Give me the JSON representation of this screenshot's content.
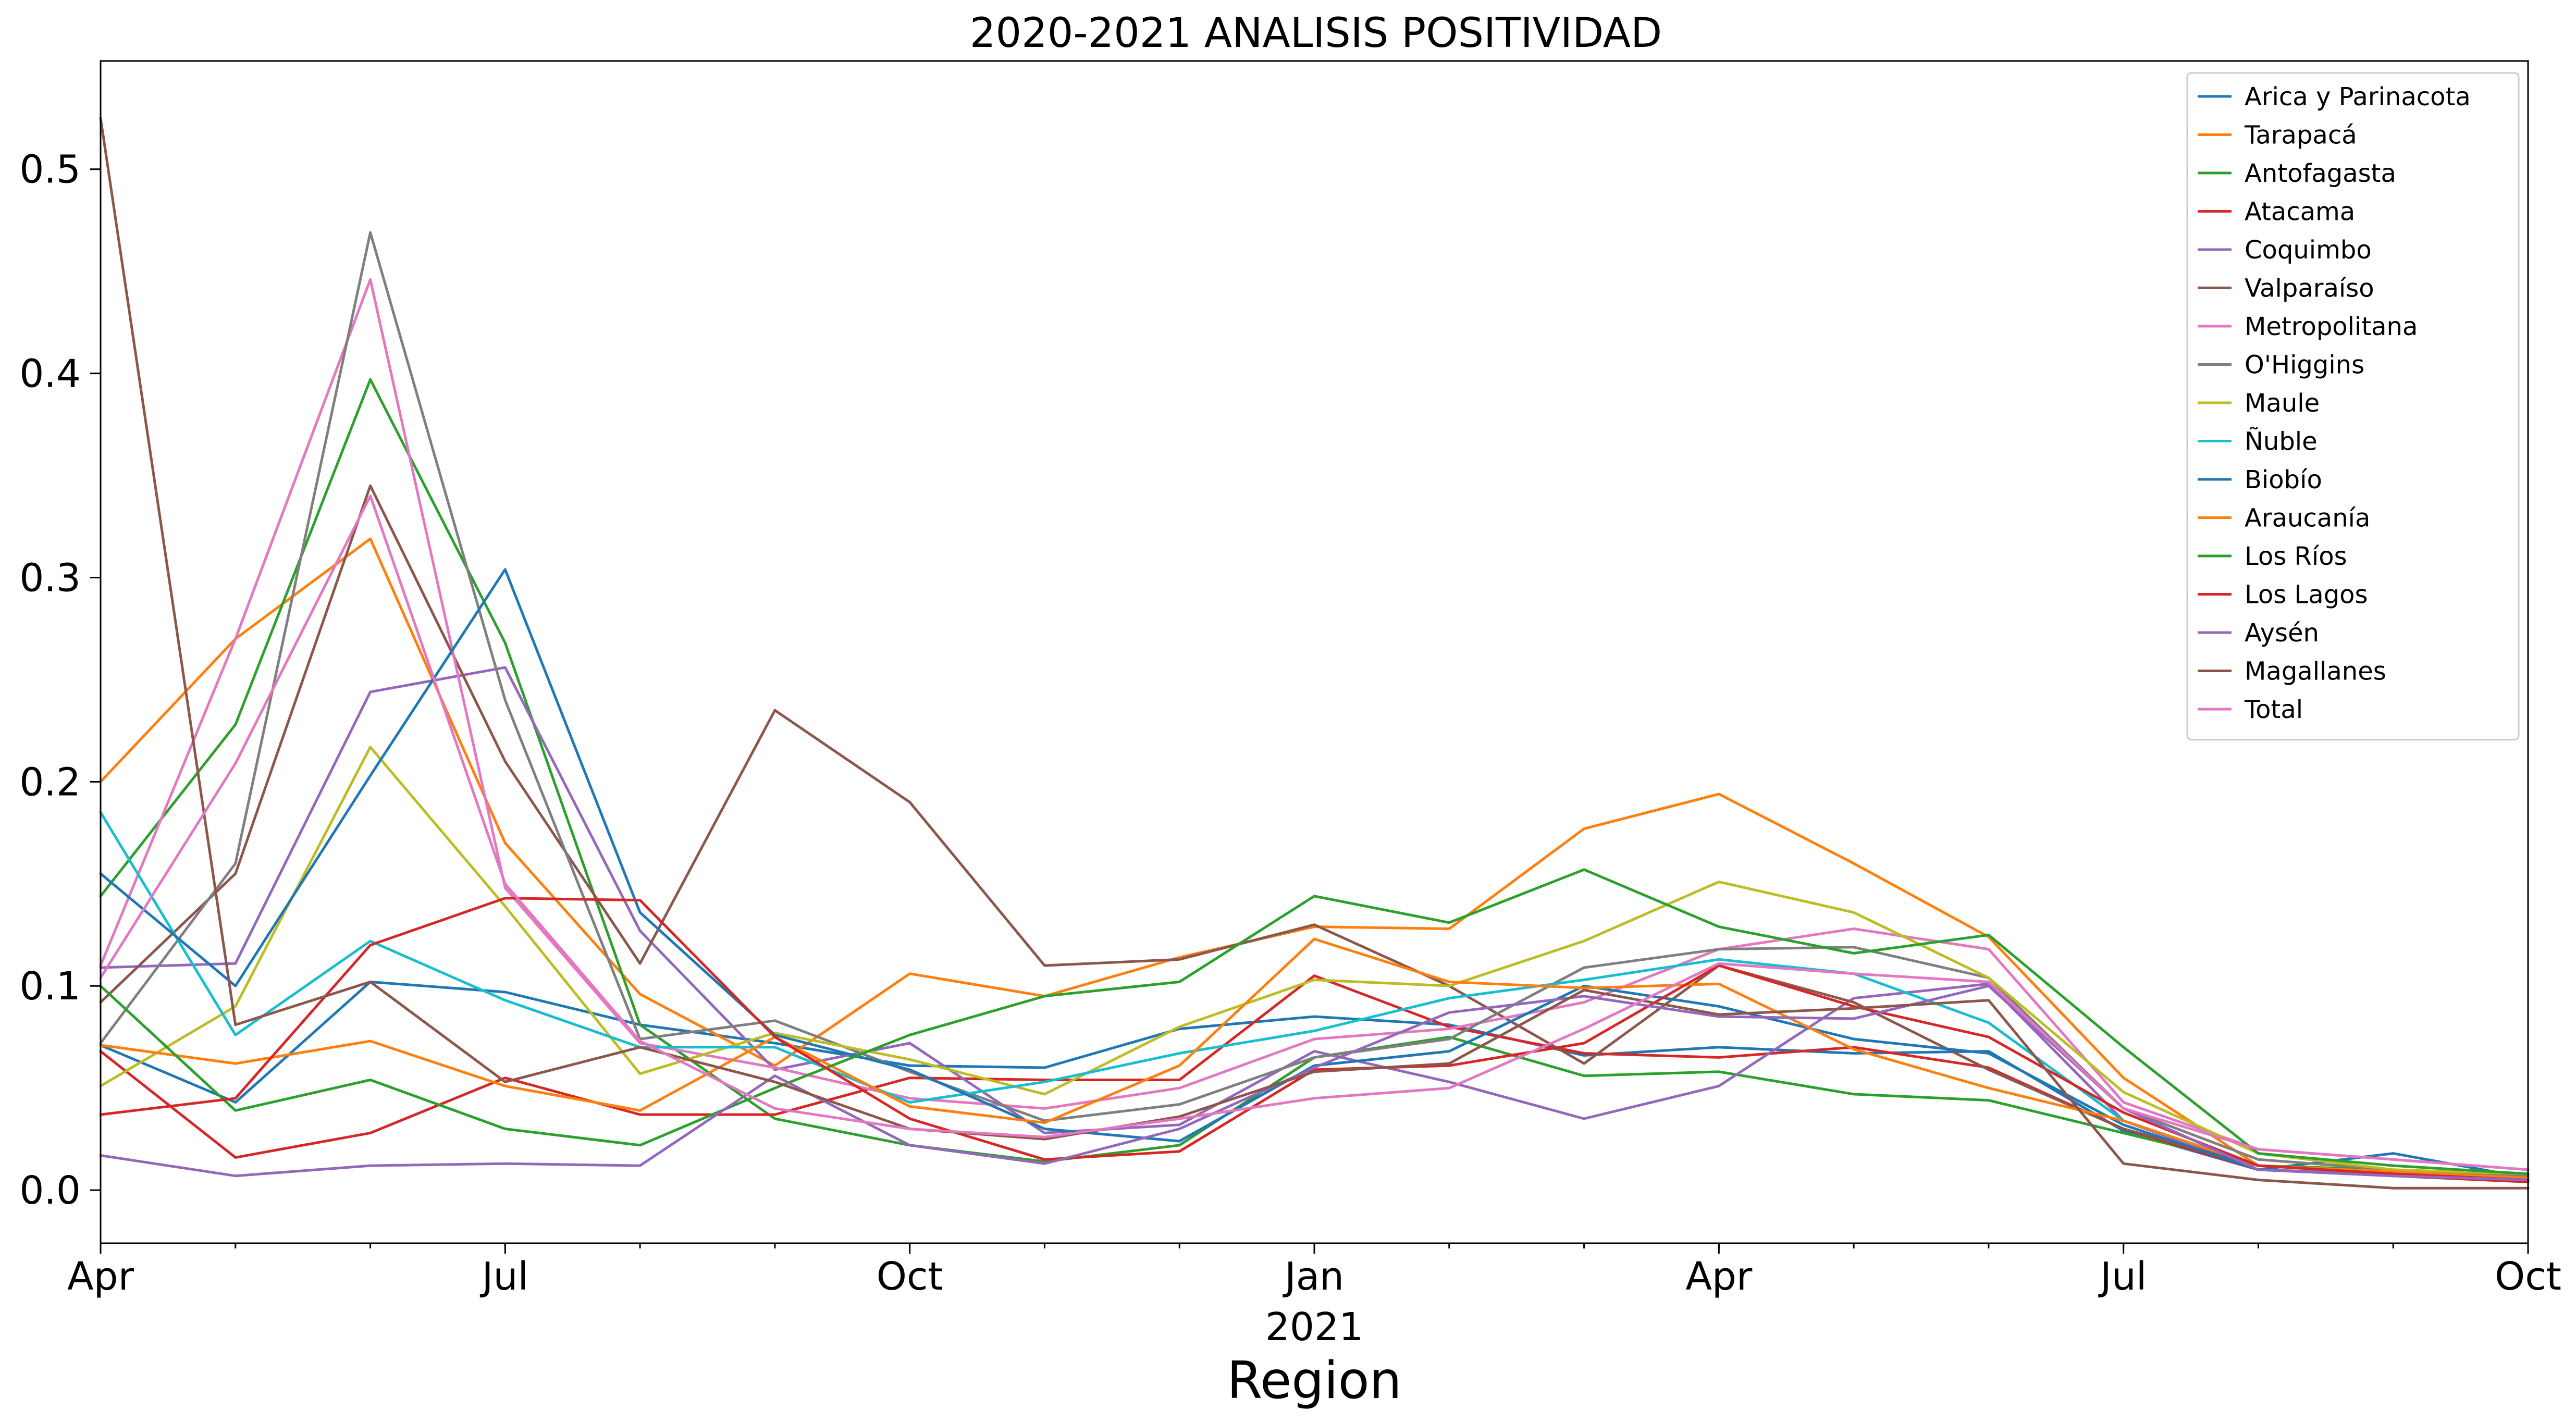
{
  "chart_data": {
    "type": "line",
    "title": "2020-2021 ANALISIS POSITIVIDAD",
    "xlabel": "Region",
    "ylabel": "",
    "x": [
      "2020-04",
      "2020-05",
      "2020-06",
      "2020-07",
      "2020-08",
      "2020-09",
      "2020-10",
      "2020-11",
      "2020-12",
      "2021-01",
      "2021-02",
      "2021-03",
      "2021-04",
      "2021-05",
      "2021-06",
      "2021-07",
      "2021-08",
      "2021-09",
      "2021-10"
    ],
    "xlim": [
      "2020-04",
      "2021-10"
    ],
    "ylim": [
      -0.026,
      0.553
    ],
    "x_ticks": [
      {
        "x": "2020-04",
        "label": "Apr"
      },
      {
        "x": "2020-07",
        "label": "Jul"
      },
      {
        "x": "2020-10",
        "label": "Oct"
      },
      {
        "x": "2021-01",
        "label": "Jan"
      },
      {
        "x": "2021-04",
        "label": "Apr"
      },
      {
        "x": "2021-07",
        "label": "Jul"
      },
      {
        "x": "2021-10",
        "label": "Oct"
      }
    ],
    "x_year_label": "2021",
    "y_ticks": [
      {
        "y": 0.0,
        "label": "0.0"
      },
      {
        "y": 0.1,
        "label": "0.1"
      },
      {
        "y": 0.2,
        "label": "0.2"
      },
      {
        "y": 0.3,
        "label": "0.3"
      },
      {
        "y": 0.4,
        "label": "0.4"
      },
      {
        "y": 0.5,
        "label": "0.5"
      }
    ],
    "grid": false,
    "legend": "top-right",
    "series": [
      {
        "name": "Arica y Parinacota",
        "color": "#1f77b4",
        "values": [
          0.071,
          0.043,
          0.102,
          0.097,
          0.081,
          0.072,
          0.061,
          0.06,
          0.079,
          0.085,
          0.081,
          0.066,
          0.07,
          0.067,
          0.068,
          0.029,
          0.01,
          0.018,
          0.006
        ]
      },
      {
        "name": "Tarapacá",
        "color": "#ff7f0e",
        "values": [
          0.2,
          0.27,
          0.319,
          0.17,
          0.096,
          0.061,
          0.106,
          0.095,
          0.114,
          0.129,
          0.128,
          0.177,
          0.194,
          0.16,
          0.124,
          0.055,
          0.012,
          0.008,
          0.005
        ]
      },
      {
        "name": "Antofagasta",
        "color": "#2ca02c",
        "values": [
          0.144,
          0.228,
          0.397,
          0.268,
          0.081,
          0.035,
          0.022,
          0.014,
          0.022,
          0.065,
          0.075,
          0.056,
          0.058,
          0.047,
          0.044,
          0.028,
          0.012,
          0.01,
          0.006
        ]
      },
      {
        "name": "Atacama",
        "color": "#d62728",
        "values": [
          0.068,
          0.016,
          0.028,
          0.055,
          0.037,
          0.037,
          0.055,
          0.054,
          0.054,
          0.105,
          0.08,
          0.067,
          0.065,
          0.07,
          0.06,
          0.03,
          0.01,
          0.007,
          0.004
        ]
      },
      {
        "name": "Coquimbo",
        "color": "#9467bd",
        "values": [
          0.109,
          0.111,
          0.244,
          0.256,
          0.127,
          0.059,
          0.072,
          0.028,
          0.032,
          0.068,
          0.053,
          0.035,
          0.051,
          0.094,
          0.101,
          0.034,
          0.01,
          0.008,
          0.005
        ]
      },
      {
        "name": "Valparaíso",
        "color": "#8c564b",
        "values": [
          0.092,
          0.155,
          0.345,
          0.21,
          0.111,
          0.235,
          0.19,
          0.11,
          0.113,
          0.13,
          0.1,
          0.062,
          0.11,
          0.092,
          0.059,
          0.03,
          0.012,
          0.008,
          0.005
        ]
      },
      {
        "name": "Metropolitana",
        "color": "#e377c2",
        "values": [
          0.11,
          0.27,
          0.446,
          0.148,
          0.072,
          0.06,
          0.045,
          0.04,
          0.05,
          0.074,
          0.079,
          0.092,
          0.118,
          0.128,
          0.118,
          0.043,
          0.02,
          0.015,
          0.01
        ]
      },
      {
        "name": "O'Higgins",
        "color": "#7f7f7f",
        "values": [
          0.072,
          0.16,
          0.469,
          0.24,
          0.074,
          0.083,
          0.058,
          0.034,
          0.042,
          0.065,
          0.074,
          0.109,
          0.118,
          0.119,
          0.104,
          0.04,
          0.015,
          0.01,
          0.007
        ]
      },
      {
        "name": "Maule",
        "color": "#bcbd22",
        "values": [
          0.051,
          0.09,
          0.217,
          0.139,
          0.057,
          0.077,
          0.064,
          0.047,
          0.08,
          0.103,
          0.1,
          0.122,
          0.151,
          0.136,
          0.104,
          0.048,
          0.018,
          0.01,
          0.008
        ]
      },
      {
        "name": "Ñuble",
        "color": "#17becf",
        "values": [
          0.185,
          0.076,
          0.122,
          0.093,
          0.07,
          0.07,
          0.043,
          0.053,
          0.067,
          0.078,
          0.094,
          0.103,
          0.113,
          0.106,
          0.082,
          0.034,
          0.012,
          0.008,
          0.005
        ]
      },
      {
        "name": "Biobío",
        "color": "#1f77b4",
        "values": [
          0.155,
          0.1,
          0.203,
          0.304,
          0.136,
          0.076,
          0.059,
          0.03,
          0.024,
          0.061,
          0.068,
          0.1,
          0.09,
          0.074,
          0.067,
          0.032,
          0.01,
          0.007,
          0.005
        ]
      },
      {
        "name": "Araucanía",
        "color": "#ff7f0e",
        "values": [
          0.071,
          0.062,
          0.073,
          0.051,
          0.039,
          0.075,
          0.041,
          0.033,
          0.061,
          0.123,
          0.102,
          0.099,
          0.101,
          0.069,
          0.05,
          0.034,
          0.012,
          0.009,
          0.006
        ]
      },
      {
        "name": "Los Ríos",
        "color": "#2ca02c",
        "values": [
          0.1,
          0.039,
          0.054,
          0.03,
          0.022,
          0.05,
          0.076,
          0.095,
          0.102,
          0.144,
          0.131,
          0.157,
          0.129,
          0.116,
          0.125,
          0.07,
          0.018,
          0.012,
          0.008
        ]
      },
      {
        "name": "Los Lagos",
        "color": "#d62728",
        "values": [
          0.037,
          0.045,
          0.12,
          0.143,
          0.142,
          0.075,
          0.035,
          0.015,
          0.019,
          0.059,
          0.061,
          0.072,
          0.11,
          0.09,
          0.075,
          0.038,
          0.012,
          0.008,
          0.005
        ]
      },
      {
        "name": "Aysén",
        "color": "#9467bd",
        "values": [
          0.017,
          0.007,
          0.012,
          0.013,
          0.012,
          0.056,
          0.022,
          0.013,
          0.03,
          0.06,
          0.087,
          0.095,
          0.085,
          0.084,
          0.1,
          0.04,
          0.01,
          0.007,
          0.005
        ]
      },
      {
        "name": "Magallanes",
        "color": "#8c564b",
        "values": [
          0.525,
          0.081,
          0.102,
          0.053,
          0.07,
          0.053,
          0.03,
          0.025,
          0.036,
          0.058,
          0.062,
          0.098,
          0.086,
          0.089,
          0.093,
          0.013,
          0.005,
          0.001,
          0.001
        ]
      },
      {
        "name": "Total",
        "color": "#e377c2",
        "values": [
          0.104,
          0.209,
          0.34,
          0.15,
          0.073,
          0.04,
          0.03,
          0.026,
          0.035,
          0.045,
          0.05,
          0.079,
          0.111,
          0.106,
          0.102,
          0.04,
          0.02,
          0.015,
          0.01
        ]
      }
    ]
  }
}
